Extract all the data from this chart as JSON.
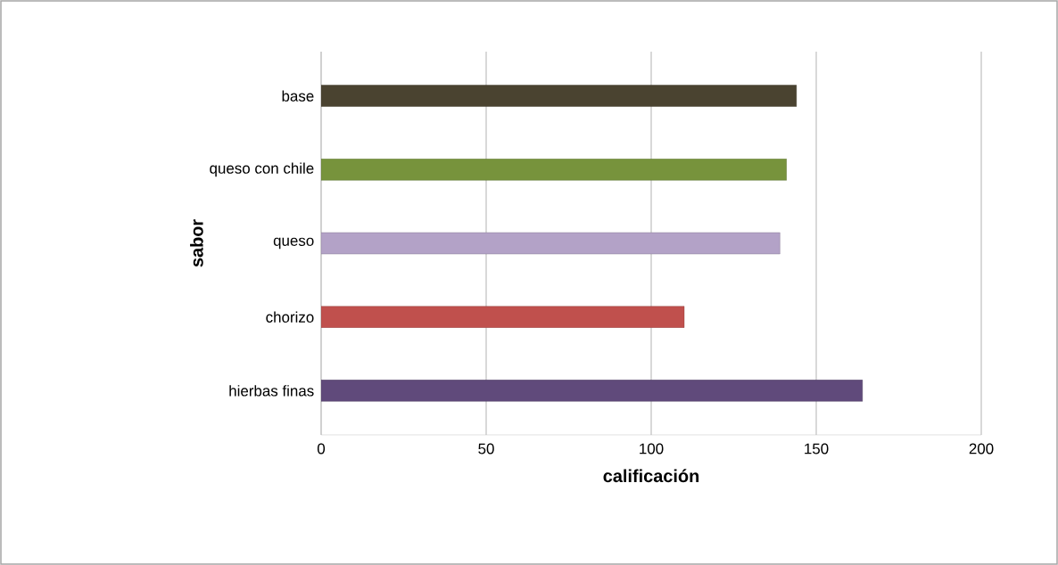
{
  "chart_data": {
    "type": "bar",
    "orientation": "horizontal",
    "xlabel": "calificación",
    "ylabel": "sabor",
    "categories": [
      "base",
      "queso con chile",
      "queso",
      "chorizo",
      "hierbas finas"
    ],
    "values": [
      144,
      141,
      139,
      110,
      164
    ],
    "colors": [
      "#4a4330",
      "#77933c",
      "#b3a2c7",
      "#c0504d",
      "#604a7b"
    ],
    "xlim": [
      0,
      200
    ],
    "xticks": [
      0,
      50,
      100,
      150,
      200
    ],
    "grid": "x"
  }
}
